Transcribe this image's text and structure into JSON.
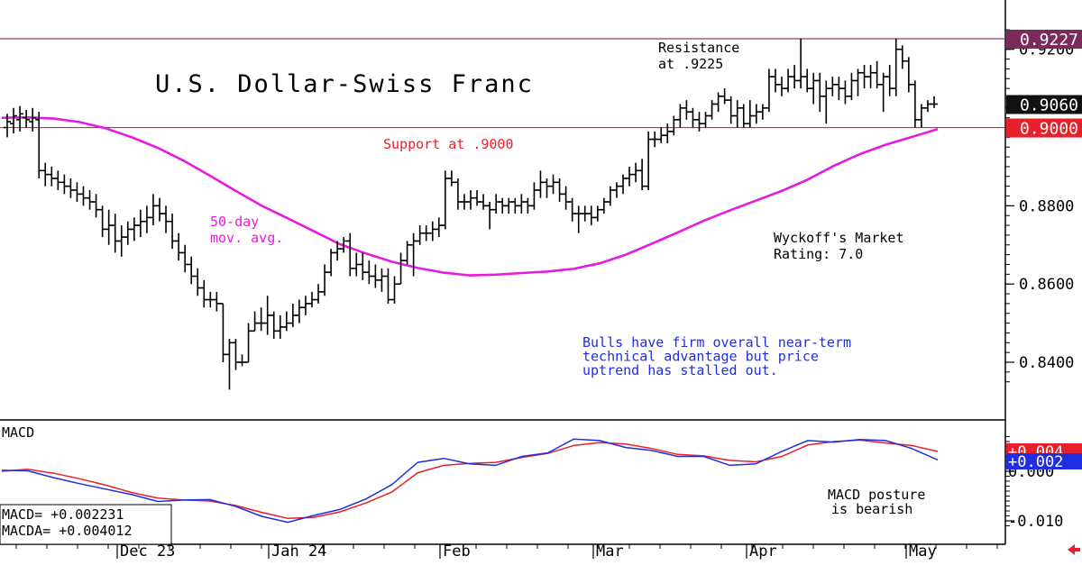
{
  "chart_data": [
    {
      "type": "ohlc",
      "title": "U.S. Dollar-Swiss Franc",
      "ylim": [
        0.832,
        0.9265
      ],
      "yticks": [
        "0.8400",
        "0.8600",
        "0.8800",
        "0.9200"
      ],
      "price_tags": [
        {
          "label": "0.9227",
          "value": 0.9227,
          "color": "#7b2a5c"
        },
        {
          "label": "0.9060",
          "value": 0.906,
          "color": "#111111"
        },
        {
          "label": "0.9000",
          "value": 0.9,
          "color": "#e8202a"
        }
      ],
      "hlines": [
        {
          "name": "resistance",
          "value": 0.9227,
          "color": "#8e3a6e"
        },
        {
          "name": "support",
          "value": 0.9,
          "color": "#e8202a"
        }
      ],
      "annotations": {
        "resistance": [
          "Resistance",
          "at .9225"
        ],
        "support": "Support at .9000",
        "ma_label": [
          "50-day",
          "mov. avg."
        ],
        "rating": [
          "Wyckoff's Market",
          "Rating: 7.0"
        ],
        "comment": [
          "Bulls have firm overall near-term",
          "technical advantage but price",
          "uptrend has stalled out."
        ]
      },
      "moving_average": {
        "name": "50-day mov. avg.",
        "color": "#e51ce0",
        "values": [
          0.9025,
          0.9026,
          0.9023,
          0.9014,
          0.8998,
          0.8975,
          0.8948,
          0.8915,
          0.8877,
          0.8838,
          0.88,
          0.8768,
          0.8735,
          0.8702,
          0.8678,
          0.8657,
          0.8641,
          0.8629,
          0.8622,
          0.8624,
          0.8628,
          0.8632,
          0.8639,
          0.8653,
          0.8675,
          0.8703,
          0.8732,
          0.8762,
          0.8788,
          0.8813,
          0.8838,
          0.8867,
          0.8902,
          0.8932,
          0.8956,
          0.8976,
          0.8996
        ]
      },
      "ohlc": [
        [
          0.9,
          0.9035,
          0.8975,
          0.9015
        ],
        [
          0.901,
          0.905,
          0.8985,
          0.903
        ],
        [
          0.902,
          0.9055,
          0.899,
          0.9035
        ],
        [
          0.9025,
          0.9045,
          0.9,
          0.902
        ],
        [
          0.9015,
          0.905,
          0.899,
          0.9025
        ],
        [
          0.902,
          0.904,
          0.887,
          0.889
        ],
        [
          0.889,
          0.891,
          0.885,
          0.888
        ],
        [
          0.888,
          0.89,
          0.885,
          0.887
        ],
        [
          0.887,
          0.889,
          0.884,
          0.886
        ],
        [
          0.886,
          0.888,
          0.883,
          0.885
        ],
        [
          0.885,
          0.887,
          0.882,
          0.884
        ],
        [
          0.884,
          0.886,
          0.881,
          0.883
        ],
        [
          0.883,
          0.885,
          0.88,
          0.882
        ],
        [
          0.882,
          0.884,
          0.879,
          0.881
        ],
        [
          0.881,
          0.883,
          0.877,
          0.879
        ],
        [
          0.879,
          0.88,
          0.872,
          0.874
        ],
        [
          0.874,
          0.879,
          0.87,
          0.875
        ],
        [
          0.875,
          0.878,
          0.868,
          0.871
        ],
        [
          0.871,
          0.875,
          0.867,
          0.872
        ],
        [
          0.872,
          0.876,
          0.87,
          0.874
        ],
        [
          0.874,
          0.877,
          0.871,
          0.875
        ],
        [
          0.875,
          0.879,
          0.872,
          0.876
        ],
        [
          0.876,
          0.88,
          0.873,
          0.877
        ],
        [
          0.877,
          0.883,
          0.875,
          0.88
        ],
        [
          0.88,
          0.882,
          0.876,
          0.878
        ],
        [
          0.878,
          0.88,
          0.873,
          0.876
        ],
        [
          0.876,
          0.878,
          0.869,
          0.871
        ],
        [
          0.871,
          0.873,
          0.866,
          0.868
        ],
        [
          0.868,
          0.87,
          0.863,
          0.865
        ],
        [
          0.865,
          0.867,
          0.86,
          0.862
        ],
        [
          0.862,
          0.864,
          0.857,
          0.859
        ],
        [
          0.859,
          0.861,
          0.854,
          0.856
        ],
        [
          0.856,
          0.858,
          0.854,
          0.856
        ],
        [
          0.856,
          0.858,
          0.853,
          0.855
        ],
        [
          0.855,
          0.855,
          0.84,
          0.842
        ],
        [
          0.842,
          0.846,
          0.833,
          0.845
        ],
        [
          0.845,
          0.846,
          0.838,
          0.84
        ],
        [
          0.84,
          0.842,
          0.839,
          0.84
        ],
        [
          0.84,
          0.85,
          0.84,
          0.848
        ],
        [
          0.848,
          0.853,
          0.848,
          0.85
        ],
        [
          0.85,
          0.854,
          0.848,
          0.85
        ],
        [
          0.85,
          0.857,
          0.847,
          0.852
        ],
        [
          0.852,
          0.853,
          0.846,
          0.848
        ],
        [
          0.848,
          0.852,
          0.846,
          0.849
        ],
        [
          0.849,
          0.853,
          0.848,
          0.85
        ],
        [
          0.85,
          0.855,
          0.849,
          0.852
        ],
        [
          0.852,
          0.856,
          0.85,
          0.854
        ],
        [
          0.854,
          0.857,
          0.852,
          0.855
        ],
        [
          0.855,
          0.858,
          0.854,
          0.856
        ],
        [
          0.856,
          0.86,
          0.855,
          0.858
        ],
        [
          0.858,
          0.865,
          0.857,
          0.863
        ],
        [
          0.863,
          0.869,
          0.862,
          0.868
        ],
        [
          0.868,
          0.871,
          0.866,
          0.869
        ],
        [
          0.869,
          0.872,
          0.868,
          0.871
        ],
        [
          0.871,
          0.873,
          0.862,
          0.864
        ],
        [
          0.864,
          0.868,
          0.862,
          0.865
        ],
        [
          0.865,
          0.868,
          0.861,
          0.863
        ],
        [
          0.863,
          0.866,
          0.86,
          0.862
        ],
        [
          0.862,
          0.865,
          0.859,
          0.861
        ],
        [
          0.861,
          0.864,
          0.858,
          0.862
        ],
        [
          0.862,
          0.864,
          0.855,
          0.856
        ],
        [
          0.856,
          0.862,
          0.855,
          0.86
        ],
        [
          0.86,
          0.868,
          0.86,
          0.866
        ],
        [
          0.866,
          0.871,
          0.865,
          0.87
        ],
        [
          0.87,
          0.873,
          0.862,
          0.871
        ],
        [
          0.871,
          0.875,
          0.87,
          0.873
        ],
        [
          0.873,
          0.875,
          0.871,
          0.873
        ],
        [
          0.873,
          0.876,
          0.871,
          0.874
        ],
        [
          0.874,
          0.877,
          0.872,
          0.875
        ],
        [
          0.875,
          0.889,
          0.874,
          0.887
        ],
        [
          0.887,
          0.889,
          0.885,
          0.886
        ],
        [
          0.886,
          0.887,
          0.879,
          0.881
        ],
        [
          0.881,
          0.883,
          0.879,
          0.881
        ],
        [
          0.881,
          0.884,
          0.879,
          0.882
        ],
        [
          0.882,
          0.884,
          0.88,
          0.881
        ],
        [
          0.881,
          0.883,
          0.879,
          0.88
        ],
        [
          0.88,
          0.881,
          0.874,
          0.879
        ],
        [
          0.879,
          0.883,
          0.878,
          0.881
        ],
        [
          0.881,
          0.882,
          0.878,
          0.88
        ],
        [
          0.88,
          0.882,
          0.878,
          0.881
        ],
        [
          0.881,
          0.882,
          0.878,
          0.88
        ],
        [
          0.88,
          0.883,
          0.878,
          0.881
        ],
        [
          0.881,
          0.882,
          0.878,
          0.88
        ],
        [
          0.88,
          0.886,
          0.879,
          0.884
        ],
        [
          0.884,
          0.889,
          0.882,
          0.886
        ],
        [
          0.886,
          0.887,
          0.882,
          0.885
        ],
        [
          0.885,
          0.888,
          0.883,
          0.886
        ],
        [
          0.886,
          0.887,
          0.881,
          0.883
        ],
        [
          0.883,
          0.885,
          0.879,
          0.881
        ],
        [
          0.881,
          0.882,
          0.876,
          0.878
        ],
        [
          0.878,
          0.88,
          0.873,
          0.878
        ],
        [
          0.878,
          0.88,
          0.876,
          0.878
        ],
        [
          0.878,
          0.88,
          0.875,
          0.877
        ],
        [
          0.877,
          0.88,
          0.876,
          0.879
        ],
        [
          0.879,
          0.882,
          0.878,
          0.881
        ],
        [
          0.881,
          0.885,
          0.88,
          0.884
        ],
        [
          0.884,
          0.886,
          0.882,
          0.885
        ],
        [
          0.885,
          0.888,
          0.883,
          0.887
        ],
        [
          0.887,
          0.89,
          0.885,
          0.888
        ],
        [
          0.888,
          0.891,
          0.886,
          0.889
        ],
        [
          0.889,
          0.892,
          0.884,
          0.885
        ],
        [
          0.885,
          0.899,
          0.884,
          0.897
        ],
        [
          0.897,
          0.899,
          0.895,
          0.897
        ],
        [
          0.897,
          0.9,
          0.896,
          0.898
        ],
        [
          0.898,
          0.901,
          0.896,
          0.899
        ],
        [
          0.899,
          0.903,
          0.898,
          0.902
        ],
        [
          0.902,
          0.906,
          0.9,
          0.905
        ],
        [
          0.905,
          0.907,
          0.902,
          0.904
        ],
        [
          0.904,
          0.905,
          0.9,
          0.902
        ],
        [
          0.902,
          0.904,
          0.899,
          0.901
        ],
        [
          0.901,
          0.904,
          0.9,
          0.903
        ],
        [
          0.903,
          0.907,
          0.902,
          0.906
        ],
        [
          0.906,
          0.909,
          0.904,
          0.908
        ],
        [
          0.908,
          0.91,
          0.906,
          0.907
        ],
        [
          0.907,
          0.908,
          0.901,
          0.903
        ],
        [
          0.903,
          0.907,
          0.9,
          0.905
        ],
        [
          0.905,
          0.906,
          0.9,
          0.901
        ],
        [
          0.901,
          0.907,
          0.9,
          0.903
        ],
        [
          0.903,
          0.906,
          0.901,
          0.904
        ],
        [
          0.904,
          0.906,
          0.902,
          0.905
        ],
        [
          0.905,
          0.915,
          0.904,
          0.913
        ],
        [
          0.913,
          0.915,
          0.909,
          0.911
        ],
        [
          0.911,
          0.913,
          0.908,
          0.91
        ],
        [
          0.91,
          0.915,
          0.909,
          0.913
        ],
        [
          0.913,
          0.916,
          0.91,
          0.912
        ],
        [
          0.912,
          0.9227,
          0.91,
          0.913
        ],
        [
          0.913,
          0.915,
          0.909,
          0.91
        ],
        [
          0.91,
          0.914,
          0.906,
          0.912
        ],
        [
          0.912,
          0.914,
          0.904,
          0.908
        ],
        [
          0.908,
          0.912,
          0.901,
          0.91
        ],
        [
          0.91,
          0.913,
          0.908,
          0.911
        ],
        [
          0.911,
          0.913,
          0.907,
          0.91
        ],
        [
          0.91,
          0.912,
          0.906,
          0.908
        ],
        [
          0.908,
          0.914,
          0.907,
          0.912
        ],
        [
          0.912,
          0.915,
          0.908,
          0.914
        ],
        [
          0.914,
          0.916,
          0.91,
          0.913
        ],
        [
          0.913,
          0.916,
          0.91,
          0.914
        ],
        [
          0.914,
          0.917,
          0.91,
          0.911
        ],
        [
          0.911,
          0.914,
          0.904,
          0.913
        ],
        [
          0.913,
          0.916,
          0.908,
          0.91
        ],
        [
          0.91,
          0.9227,
          0.908,
          0.92
        ],
        [
          0.92,
          0.921,
          0.915,
          0.917
        ],
        [
          0.917,
          0.918,
          0.909,
          0.911
        ],
        [
          0.911,
          0.912,
          0.9,
          0.902
        ],
        [
          0.902,
          0.906,
          0.9,
          0.905
        ],
        [
          0.905,
          0.907,
          0.904,
          0.906
        ],
        [
          0.906,
          0.908,
          0.905,
          0.906
        ]
      ]
    },
    {
      "type": "line",
      "title": "MACD",
      "ylim": [
        -0.0115,
        0.0075
      ],
      "yticks": [
        "0.000",
        "-0.010"
      ],
      "value_tags": [
        {
          "label": "+0.004",
          "value": 0.004,
          "color": "#e8202a"
        },
        {
          "label": "+0.002",
          "value": 0.002,
          "color": "#1f2ee0"
        }
      ],
      "legend_lines": [
        "MACD=   +0.002231",
        "MACDA=  +0.004012"
      ],
      "annotation": [
        "MACD posture",
        "is bearish"
      ],
      "series": [
        {
          "name": "MACD",
          "color": "#1f2ee0",
          "values": [
            0.0002,
            0.0001,
            -0.0013,
            -0.0025,
            -0.0036,
            -0.0047,
            -0.0061,
            -0.0058,
            -0.0057,
            -0.0071,
            -0.0091,
            -0.0103,
            -0.0089,
            -0.0077,
            -0.0056,
            -0.0027,
            0.0018,
            0.0026,
            0.0015,
            0.0012,
            0.003,
            0.0037,
            0.0065,
            0.0062,
            0.0048,
            0.0042,
            0.003,
            0.003,
            0.0012,
            0.0015,
            0.004,
            0.0062,
            0.0059,
            0.0064,
            0.0062,
            0.0046,
            0.0023
          ]
        },
        {
          "name": "MACDA",
          "color": "#e8202a",
          "values": [
            0.0,
            0.0004,
            -0.0004,
            -0.0015,
            -0.0028,
            -0.0043,
            -0.0054,
            -0.0058,
            -0.006,
            -0.0069,
            -0.0083,
            -0.0095,
            -0.0093,
            -0.0082,
            -0.0064,
            -0.0042,
            -0.0003,
            0.0012,
            0.0016,
            0.0018,
            0.0028,
            0.0036,
            0.0052,
            0.0058,
            0.0055,
            0.0046,
            0.0034,
            0.0031,
            0.0022,
            0.0019,
            0.003,
            0.0053,
            0.006,
            0.0063,
            0.0057,
            0.0052,
            0.004
          ]
        }
      ]
    }
  ],
  "x_axis": {
    "labels": [
      "Dec 23",
      "Jan 24",
      "Feb",
      "Mar",
      "Apr",
      "May"
    ]
  }
}
